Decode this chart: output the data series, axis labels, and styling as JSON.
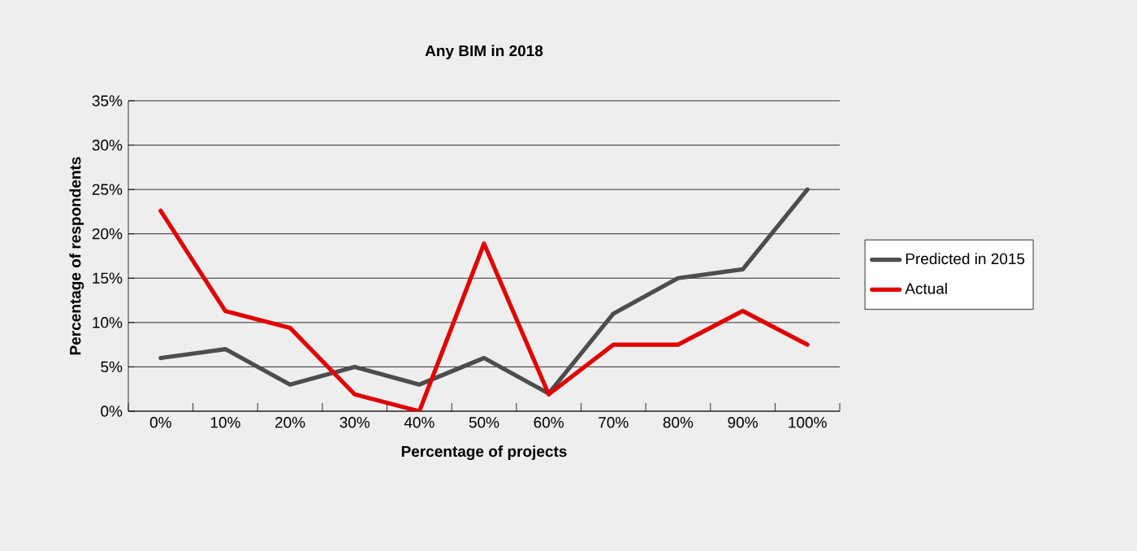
{
  "chart_data": {
    "type": "line",
    "title": "Any BIM in 2018",
    "xlabel": "Percentage of projects",
    "ylabel": "Percentage of respondents",
    "categories": [
      "0%",
      "10%",
      "20%",
      "30%",
      "40%",
      "50%",
      "60%",
      "70%",
      "80%",
      "90%",
      "100%"
    ],
    "series": [
      {
        "name": "Predicted in 2015",
        "color": "#4d4d4d",
        "values": [
          6,
          7,
          3,
          5,
          3,
          6,
          2,
          11,
          15,
          16,
          25
        ]
      },
      {
        "name": "Actual",
        "color": "#e00000",
        "values": [
          22.6,
          11.3,
          9.4,
          1.9,
          0,
          18.9,
          1.9,
          7.5,
          7.5,
          11.3,
          7.5
        ]
      }
    ],
    "ylim": [
      0,
      35
    ],
    "yticks": [
      {
        "value": 0,
        "label": "0%"
      },
      {
        "value": 5,
        "label": "5%"
      },
      {
        "value": 10,
        "label": "10%"
      },
      {
        "value": 15,
        "label": "15%"
      },
      {
        "value": 20,
        "label": "20%"
      },
      {
        "value": 25,
        "label": "25%"
      },
      {
        "value": 30,
        "label": "30%"
      },
      {
        "value": 35,
        "label": "35%"
      }
    ],
    "grid": "y",
    "legend": "right",
    "marker": "none",
    "line_style": "solid"
  }
}
